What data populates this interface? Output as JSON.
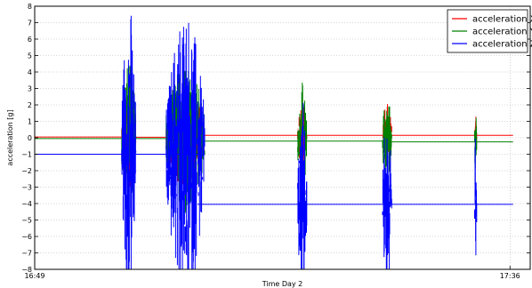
{
  "chart_data": {
    "type": "line",
    "title": "",
    "xlabel": "Time Day 2",
    "ylabel": "acceleration [g]",
    "ylim": [
      -8,
      8
    ],
    "yticks": [
      -8,
      -7,
      -6,
      -5,
      -4,
      -3,
      -2,
      -1,
      0,
      1,
      2,
      3,
      4,
      5,
      6,
      7,
      8
    ],
    "xlim_minutes": [
      0,
      49
    ],
    "xtick_labels": [
      {
        "label": "16:49",
        "t": 0
      },
      {
        "label": "17:36",
        "t": 47
      }
    ],
    "grid": true,
    "legend_position": "top-right",
    "series": [
      {
        "name": "acceleration X",
        "color": "#ff0000",
        "baseline_segments": [
          [
            0,
            9.2,
            0.05
          ],
          [
            9.2,
            16.1,
            0.03
          ],
          [
            16.1,
            26.3,
            0.15
          ],
          [
            26.3,
            34.7,
            0.15
          ],
          [
            34.7,
            47.3,
            0.15
          ]
        ]
      },
      {
        "name": "acceleration Y",
        "color": "#008000",
        "baseline_segments": [
          [
            0,
            9.2,
            -0.05
          ],
          [
            9.2,
            16.1,
            -0.05
          ],
          [
            16.1,
            26.3,
            -0.2
          ],
          [
            26.3,
            34.7,
            -0.2
          ],
          [
            34.7,
            47.3,
            -0.25
          ]
        ]
      },
      {
        "name": "acceleration Z",
        "color": "#0000ff",
        "baseline_segments": [
          [
            0,
            9.2,
            -1.0
          ],
          [
            9.2,
            16.1,
            -1.0
          ],
          [
            16.1,
            26.3,
            -4.05
          ],
          [
            26.3,
            34.7,
            -4.05
          ],
          [
            34.7,
            47.3,
            -4.05
          ]
        ]
      }
    ],
    "bursts": [
      {
        "t0": 8.6,
        "t1": 10.0,
        "amp": 7.5
      },
      {
        "t0": 13.0,
        "t1": 16.8,
        "amp": 7.0
      },
      {
        "t0": 26.0,
        "t1": 26.9,
        "amp": 5.0
      },
      {
        "t0": 34.4,
        "t1": 35.3,
        "amp": 4.5
      },
      {
        "t0": 43.5,
        "t1": 43.7,
        "amp": 3.5
      }
    ]
  }
}
